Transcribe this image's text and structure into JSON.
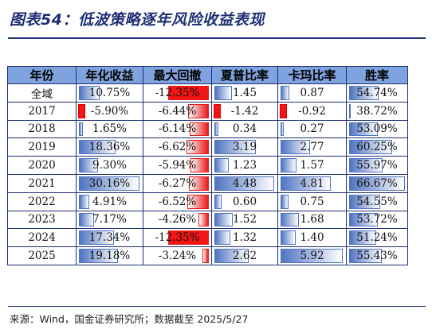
{
  "title": "图表54：低波策略逐年风险收益表现",
  "headers": [
    "年份",
    "年化收益",
    "最大回撤",
    "夏普比率",
    "卡玛比率",
    "胜率"
  ],
  "rows": [
    {
      "year": "全域",
      "ret": "10.75%",
      "dd": "-12.35%",
      "sharpe": "1.45",
      "calmar": "0.87",
      "win": "54.74%"
    },
    {
      "year": "2017",
      "ret": "-5.90%",
      "dd": "-6.44%",
      "sharpe": "-1.42",
      "calmar": "-0.92",
      "win": "38.72%"
    },
    {
      "year": "2018",
      "ret": "1.65%",
      "dd": "-6.14%",
      "sharpe": "0.34",
      "calmar": "0.27",
      "win": "53.09%"
    },
    {
      "year": "2019",
      "ret": "18.36%",
      "dd": "-6.62%",
      "sharpe": "3.19",
      "calmar": "2.77",
      "win": "60.25%"
    },
    {
      "year": "2020",
      "ret": "9.30%",
      "dd": "-5.94%",
      "sharpe": "1.23",
      "calmar": "1.57",
      "win": "55.97%"
    },
    {
      "year": "2021",
      "ret": "30.16%",
      "dd": "-6.27%",
      "sharpe": "4.48",
      "calmar": "4.81",
      "win": "66.67%"
    },
    {
      "year": "2022",
      "ret": "4.91%",
      "dd": "-6.52%",
      "sharpe": "0.60",
      "calmar": "0.75",
      "win": "54.55%"
    },
    {
      "year": "2023",
      "ret": "7.17%",
      "dd": "-4.26%",
      "sharpe": "1.52",
      "calmar": "1.68",
      "win": "53.72%"
    },
    {
      "year": "2024",
      "ret": "17.34%",
      "dd": "-12.35%",
      "sharpe": "1.32",
      "calmar": "1.40",
      "win": "51.24%"
    },
    {
      "year": "2025",
      "ret": "19.18%",
      "dd": "-3.24%",
      "sharpe": "2.62",
      "calmar": "5.92",
      "win": "55.43%"
    }
  ],
  "bar_levels": {
    "ret": [
      0.34,
      -0.08,
      0.06,
      0.6,
      0.31,
      1.0,
      0.17,
      0.25,
      0.57,
      0.64
    ],
    "dd": [
      1.0,
      0.51,
      0.48,
      0.54,
      0.46,
      0.49,
      0.53,
      0.26,
      1.0,
      0.16
    ],
    "sharpe": [
      0.29,
      -0.13,
      0.07,
      0.69,
      0.24,
      1.0,
      0.12,
      0.3,
      0.26,
      0.57
    ],
    "calmar": [
      0.14,
      -0.13,
      0.05,
      0.47,
      0.26,
      0.81,
      0.13,
      0.29,
      0.24,
      1.0
    ],
    "win": [
      0.53,
      0.0,
      0.51,
      0.77,
      0.6,
      1.0,
      0.56,
      0.52,
      0.48,
      0.58
    ]
  },
  "colors": {
    "header_bg": "#7fa3de",
    "border": "#1f2f74",
    "pos_bar": "#4f74c2",
    "neg_bar": "#e81b1b"
  },
  "source": "来源：Wind，国金证券研究所；数据截至 2025/5/27"
}
